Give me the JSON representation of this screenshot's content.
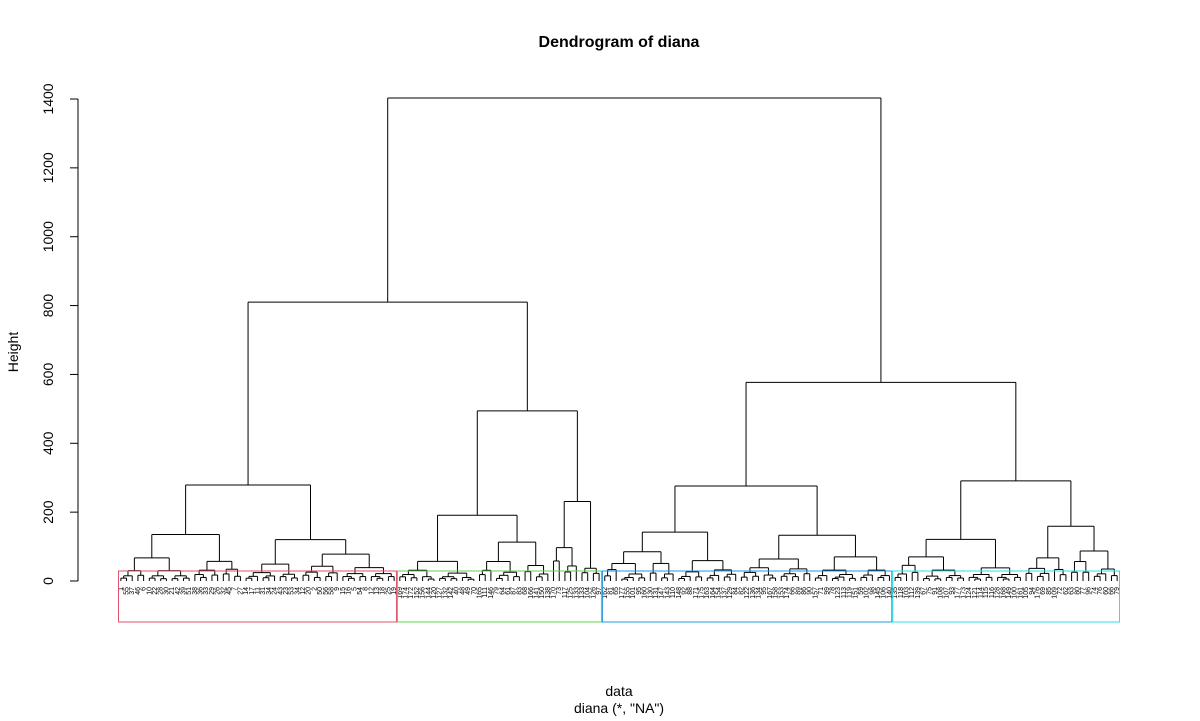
{
  "chart_data": {
    "type": "dendrogram",
    "title": "Dendrogram of diana",
    "xlabel": "data",
    "sub": "diana (*, \"NA\")",
    "ylabel": "Height",
    "ylim": [
      0,
      1400
    ],
    "yticks": [
      "0",
      "200",
      "400",
      "600",
      "800",
      "1000",
      "1200",
      "1400"
    ],
    "yvalues": [
      0,
      200,
      400,
      600,
      800,
      1000,
      1200,
      1400
    ],
    "n_leaves": 176,
    "merges": [
      {
        "height": 1403,
        "children": [
          "groups-1-2",
          "groups-3-4"
        ]
      },
      {
        "height": 810,
        "children": [
          "group-1",
          "group-2"
        ]
      },
      {
        "height": 577,
        "children": [
          "group-3",
          "group-4"
        ]
      },
      {
        "height": 279,
        "children": [
          "group-1-left",
          "group-1-right"
        ]
      },
      {
        "height": 135,
        "children": [
          "group-1-left-a",
          "group-1-left-b"
        ]
      },
      {
        "height": 120,
        "children": [
          "group-1-right-a",
          "group-1-right-b"
        ]
      },
      {
        "height": 494,
        "children": [
          "group-2-left",
          "group-2-right"
        ]
      },
      {
        "height": 191,
        "children": [
          "group-2-left-a",
          "group-2-left-b"
        ]
      },
      {
        "height": 231,
        "children": [
          "group-2-right-a",
          "group-2-right-b"
        ]
      },
      {
        "height": 276,
        "children": [
          "group-3-left",
          "group-3-right"
        ]
      },
      {
        "height": 142,
        "children": [
          "group-3-left-a",
          "group-3-left-b"
        ]
      },
      {
        "height": 133,
        "children": [
          "group-3-right-a",
          "group-3-right-b"
        ]
      },
      {
        "height": 291,
        "children": [
          "group-4-left",
          "group-4-right"
        ]
      },
      {
        "height": 121,
        "children": [
          "group-4-left-a",
          "group-4-left-b"
        ]
      },
      {
        "height": 159,
        "children": [
          "group-4-right-a",
          "group-4-right-b"
        ]
      }
    ],
    "cluster_boxes": [
      {
        "label": "cluster 1",
        "color": "#DF536B"
      },
      {
        "label": "cluster 2",
        "color": "#61D04F"
      },
      {
        "label": "cluster 3",
        "color": "#2297E6"
      },
      {
        "label": "cluster 4",
        "color": "#28E2E5"
      }
    ],
    "leaf_labels": [
      "1",
      "55",
      "37",
      "46",
      "6",
      "10",
      "22",
      "28",
      "30",
      "21",
      "42",
      "39",
      "51",
      "38",
      "36",
      "33",
      "29",
      "26",
      "32",
      "45",
      "7",
      "27",
      "14",
      "17",
      "11",
      "31",
      "34",
      "24",
      "43",
      "23",
      "53",
      "34",
      "12",
      "20",
      "2",
      "50",
      "56",
      "58",
      "9",
      "15",
      "16",
      "5",
      "54",
      "8",
      "12",
      "13",
      "18",
      "25",
      "19",
      "169",
      "174",
      "172",
      "152",
      "156",
      "144",
      "120",
      "127",
      "132",
      "142",
      "40",
      "48",
      "49",
      "70",
      "165",
      "111",
      "146",
      "79",
      "64",
      "61",
      "87",
      "83",
      "68",
      "166",
      "141",
      "150",
      "138",
      "170",
      "73",
      "117",
      "125",
      "133",
      "133",
      "104",
      "126",
      "97",
      "162",
      "81",
      "65",
      "177",
      "155",
      "101",
      "95",
      "160",
      "130",
      "131",
      "147",
      "143",
      "110",
      "148",
      "92",
      "88",
      "171",
      "175",
      "163",
      "164",
      "154",
      "137",
      "129",
      "84",
      "82",
      "122",
      "136",
      "134",
      "95",
      "167",
      "158",
      "153",
      "174",
      "66",
      "89",
      "86",
      "90",
      "157",
      "71",
      "99",
      "78",
      "123",
      "113",
      "119",
      "151",
      "59",
      "102",
      "98",
      "145",
      "106",
      "140",
      "135",
      "118",
      "103",
      "112",
      "139",
      "67",
      "75",
      "91",
      "108",
      "107",
      "93",
      "177",
      "173",
      "124",
      "121",
      "114",
      "115",
      "116",
      "128",
      "168",
      "149",
      "100",
      "161",
      "105",
      "94",
      "176",
      "69",
      "85",
      "109",
      "72",
      "62",
      "63",
      "80",
      "77",
      "96",
      "74",
      "76",
      "60",
      "66",
      "79"
    ]
  }
}
